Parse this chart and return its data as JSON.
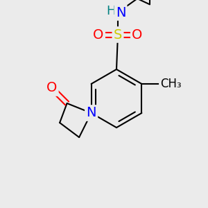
{
  "background_color": "#ebebeb",
  "bond_color": "#000000",
  "atom_colors": {
    "N": "#0000ff",
    "O": "#ff0000",
    "S": "#cccc00",
    "H": "#008080",
    "C": "#000000"
  },
  "font_size_atoms": 14,
  "figsize": [
    3.0,
    3.0
  ],
  "dpi": 100
}
